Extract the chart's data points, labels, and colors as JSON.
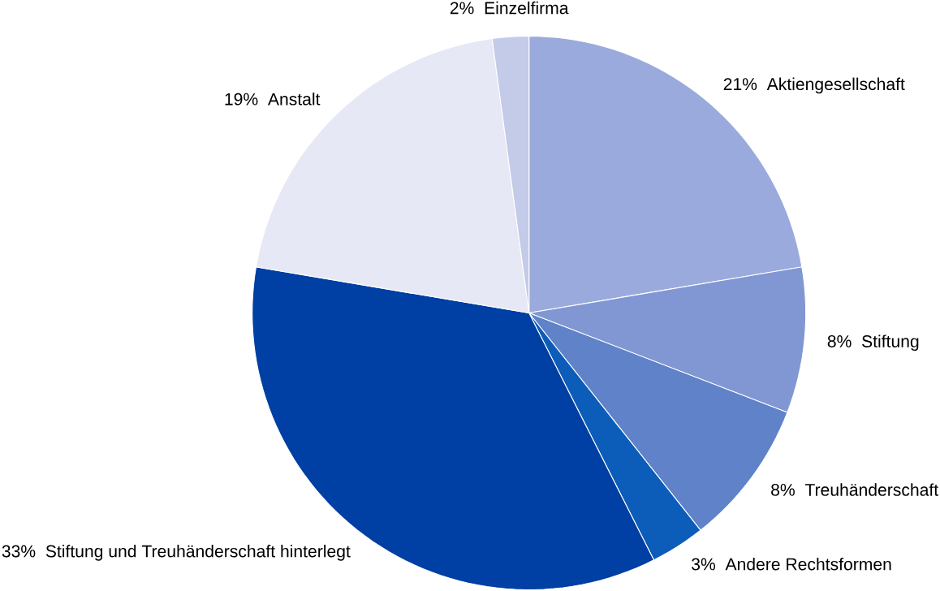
{
  "chart_data": {
    "type": "pie",
    "categories": [
      "Aktiengesellschaft",
      "Stiftung",
      "Treuhänderschaft",
      "Andere Rechtsformen",
      "Stiftung und Treuhänderschaft hinterlegt",
      "Anstalt",
      "Einzelfirma"
    ],
    "values": [
      21,
      8,
      8,
      3,
      33,
      19,
      2
    ],
    "value_labels": [
      "21%",
      "8%",
      "8%",
      "3%",
      "33%",
      "19%",
      "2%"
    ],
    "colors": [
      "#9aaadc",
      "#8197d3",
      "#5f82c9",
      "#0c5cb9",
      "#003fa3",
      "#e6e8f5",
      "#c3cbe8"
    ]
  }
}
